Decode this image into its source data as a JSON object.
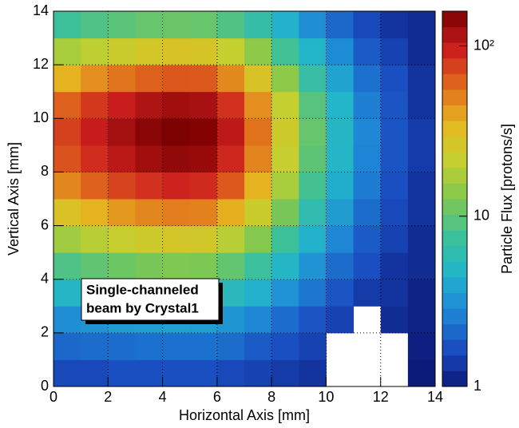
{
  "chart_data": {
    "type": "heatmap",
    "x_label": "Horizontal Axis [mm]",
    "y_label": "Vertical Axis [mm]",
    "colorbar_label": "Particle Flux [protons/s]",
    "annotation": [
      "Single-channeled",
      "beam by Crystal1"
    ],
    "xbins": [
      0,
      1,
      2,
      3,
      4,
      5,
      6,
      7,
      8,
      9,
      10,
      11,
      12,
      13,
      14
    ],
    "ybins": [
      0,
      1,
      2,
      3,
      4,
      5,
      6,
      7,
      8,
      9,
      10,
      11,
      12,
      13,
      14
    ],
    "z": [
      [
        1.6,
        1.6,
        1.7,
        1.7,
        1.7,
        1.7,
        1.6,
        1.5,
        1.4,
        1.3,
        null,
        null,
        null,
        1.0
      ],
      [
        2.1,
        2.2,
        2.2,
        2.3,
        2.3,
        2.3,
        2.2,
        1.9,
        1.7,
        1.5,
        null,
        null,
        null,
        1.05
      ],
      [
        3.0,
        3.2,
        3.5,
        3.6,
        3.7,
        3.6,
        3.3,
        2.8,
        2.2,
        1.8,
        1.5,
        null,
        1.2,
        1.1
      ],
      [
        4.9,
        5.5,
        5.9,
        6.2,
        6.5,
        6.3,
        5.5,
        4.4,
        3.2,
        2.4,
        1.8,
        1.4,
        1.3,
        1.1
      ],
      [
        8.7,
        10,
        11,
        12,
        12.6,
        12.3,
        10.2,
        7.4,
        4.9,
        3.2,
        2.2,
        1.7,
        1.3,
        1.2
      ],
      [
        16,
        19,
        22,
        24,
        26,
        25,
        19,
        13,
        7.6,
        4.5,
        2.8,
        1.9,
        1.5,
        1.2
      ],
      [
        29,
        36,
        43,
        48,
        51,
        50,
        37,
        23,
        12,
        6.2,
        3.5,
        2.2,
        1.6,
        1.3
      ],
      [
        48,
        62,
        74,
        85,
        93,
        89,
        65,
        36,
        17,
        8.1,
        4.3,
        2.5,
        1.7,
        1.3
      ],
      [
        68,
        87,
        107,
        126,
        138,
        132,
        91,
        49,
        22,
        9.8,
        4.8,
        2.7,
        1.8,
        1.4
      ],
      [
        76,
        100,
        123,
        145,
        158,
        151,
        105,
        55,
        24,
        10.5,
        5,
        2.8,
        1.8,
        1.4
      ],
      [
        62,
        81,
        98,
        115,
        126,
        120,
        85,
        46,
        21,
        9.3,
        4.7,
        2.6,
        1.8,
        1.3
      ],
      [
        36,
        46,
        54,
        62,
        66,
        65,
        47,
        28,
        14,
        6.9,
        3.8,
        2.3,
        1.7,
        1.3
      ],
      [
        17,
        20,
        23,
        26,
        28,
        27,
        21,
        14,
        7.9,
        4.7,
        2.9,
        1.9,
        1.5,
        1.2
      ],
      [
        7.6,
        8.7,
        9.5,
        10.5,
        10.7,
        10.5,
        8.9,
        6.6,
        4.5,
        3.0,
        2.1,
        1.6,
        1.3,
        1.2
      ]
    ],
    "xlim": [
      0,
      14
    ],
    "ylim": [
      0,
      14
    ],
    "xticks": [
      0,
      2,
      4,
      6,
      8,
      10,
      12,
      14
    ],
    "yticks": [
      0,
      2,
      4,
      6,
      8,
      10,
      12,
      14
    ],
    "zlim": [
      1,
      160
    ],
    "zlog": true,
    "zticks": [
      1,
      10,
      {
        "value": 100,
        "label": "10²"
      }
    ],
    "grid": true,
    "colorscale": [
      "#0c1a7a",
      "#1a4cc0",
      "#1e86d6",
      "#22b4cc",
      "#3cc09a",
      "#80c850",
      "#c4d030",
      "#e6b820",
      "#e06a1c",
      "#cc1e1e",
      "#7a0000"
    ]
  }
}
